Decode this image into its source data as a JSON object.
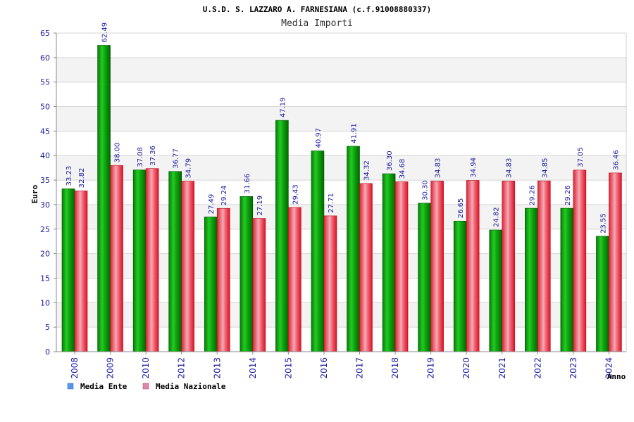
{
  "chart_data": {
    "type": "bar",
    "title": "U.S.D. S. LAZZARO A. FARNESIANA (c.f.91008880337)",
    "subtitle": "Media Importi",
    "xlabel": "Anno",
    "ylabel": "Euro",
    "ylim": [
      0,
      65
    ],
    "yticks": [
      0,
      5,
      10,
      15,
      20,
      25,
      30,
      35,
      40,
      45,
      50,
      55,
      60,
      65
    ],
    "grid": true,
    "legend_position": "bottom-left",
    "categories": [
      "2008",
      "2009",
      "2010",
      "2012",
      "2013",
      "2014",
      "2015",
      "2016",
      "2017",
      "2018",
      "2019",
      "2020",
      "2021",
      "2022",
      "2023",
      "2024"
    ],
    "series": [
      {
        "name": "Media Ente",
        "color": "#22bb22",
        "legend_color": "#5599ee",
        "values": [
          33.23,
          62.49,
          37.08,
          36.77,
          27.49,
          31.66,
          47.19,
          40.97,
          41.91,
          36.3,
          30.3,
          26.65,
          24.82,
          29.26,
          29.26,
          23.55
        ],
        "labels": [
          "33.23",
          "62.49",
          "37.08",
          "36.77",
          "27.49",
          "31.66",
          "47.19",
          "40.97",
          "41.91",
          "36.30",
          "30.30",
          "26.65",
          "24.82",
          "29.26",
          "29.26",
          "23.55"
        ]
      },
      {
        "name": "Media Nazionale",
        "color": "#ee3344",
        "legend_color": "#dd88aa",
        "values": [
          32.82,
          38.0,
          37.36,
          34.79,
          29.24,
          27.19,
          29.43,
          27.71,
          34.32,
          34.68,
          34.83,
          34.94,
          34.83,
          34.85,
          37.05,
          36.46
        ],
        "labels": [
          "32.82",
          "38.00",
          "37.36",
          "34.79",
          "29.24",
          "27.19",
          "29.43",
          "27.71",
          "34.32",
          "34.68",
          "34.83",
          "34.94",
          "34.83",
          "34.85",
          "37.05",
          "36.46"
        ]
      }
    ]
  }
}
